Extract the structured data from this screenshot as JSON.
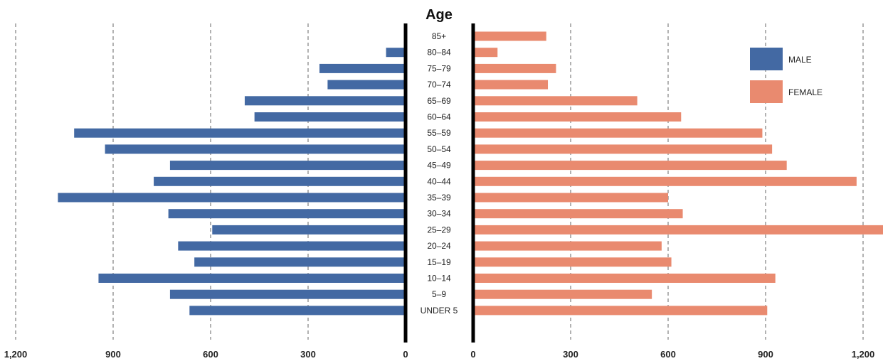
{
  "chart_data": {
    "type": "bar",
    "title": "Age",
    "categories": [
      "85+",
      "80–84",
      "75–79",
      "70–74",
      "65–69",
      "60–64",
      "55–59",
      "50–54",
      "45–49",
      "40–44",
      "35–39",
      "30–34",
      "25–29",
      "20–24",
      "15–19",
      "10–14",
      "5–9",
      "UNDER 5"
    ],
    "series": [
      {
        "name": "MALE",
        "color": "#4369a3",
        "values": [
          5,
          60,
          265,
          240,
          495,
          465,
          1020,
          925,
          725,
          775,
          1070,
          730,
          595,
          700,
          650,
          945,
          725,
          665
        ]
      },
      {
        "name": "FEMALE",
        "color": "#e98a6f",
        "values": [
          225,
          75,
          255,
          230,
          505,
          640,
          890,
          920,
          965,
          1180,
          600,
          645,
          1270,
          580,
          610,
          930,
          550,
          905
        ]
      }
    ],
    "left_axis": {
      "range": [
        0,
        1200
      ],
      "ticks": [
        1200,
        900,
        600,
        300,
        0
      ],
      "tick_labels": [
        "1,200",
        "900",
        "600",
        "300",
        "0"
      ]
    },
    "right_axis": {
      "range": [
        0,
        1200
      ],
      "ticks": [
        0,
        300,
        600,
        900,
        1200
      ],
      "tick_labels": [
        "0",
        "300",
        "600",
        "900",
        "1,200"
      ]
    },
    "grid": true,
    "legend_position": "top-right"
  }
}
